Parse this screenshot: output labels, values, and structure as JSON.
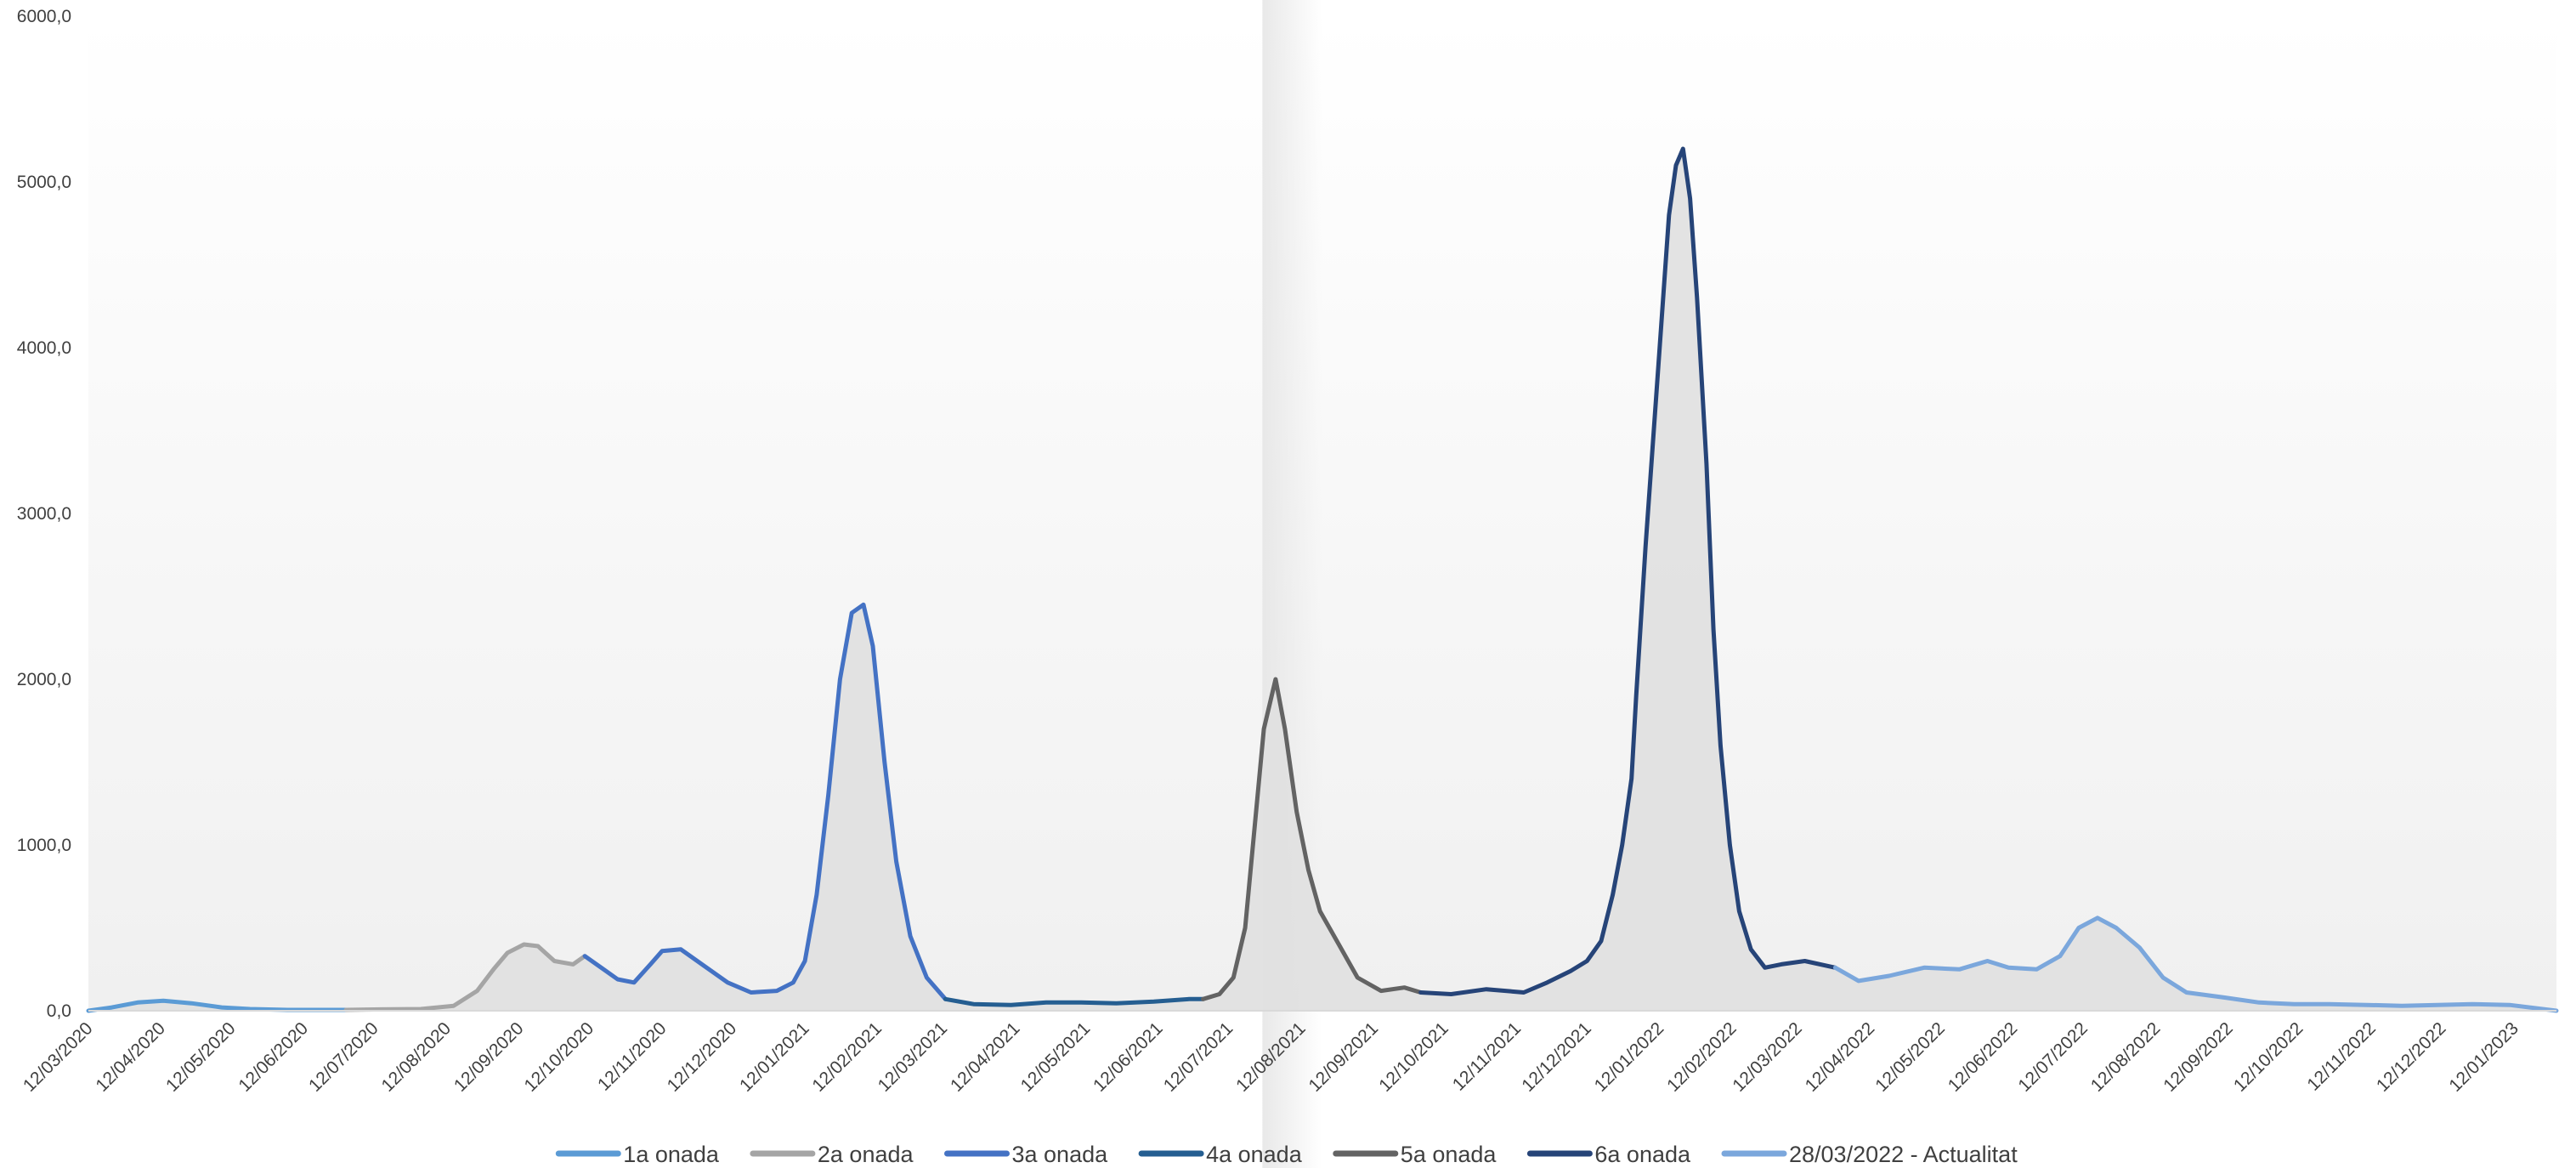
{
  "chart_data": {
    "type": "line",
    "title": "",
    "xlabel": "",
    "ylabel": "",
    "ylim": [
      0,
      6000
    ],
    "y_ticks": [
      "0,0",
      "1000,0",
      "2000,0",
      "3000,0",
      "4000,0",
      "5000,0",
      "6000,0"
    ],
    "x_range": [
      "2020-03-12",
      "2023-01-30"
    ],
    "x_ticks": [
      "12/03/2020",
      "12/04/2020",
      "12/05/2020",
      "12/06/2020",
      "12/07/2020",
      "12/08/2020",
      "12/09/2020",
      "12/10/2020",
      "12/11/2020",
      "12/12/2020",
      "12/01/2021",
      "12/02/2021",
      "12/03/2021",
      "12/04/2021",
      "12/05/2021",
      "12/06/2021",
      "12/07/2021",
      "12/08/2021",
      "12/09/2021",
      "12/10/2021",
      "12/11/2021",
      "12/12/2021",
      "12/01/2022",
      "12/02/2022",
      "12/03/2022",
      "12/04/2022",
      "12/05/2022",
      "12/06/2022",
      "12/07/2022",
      "12/08/2022",
      "12/09/2022",
      "12/10/2022",
      "12/11/2022",
      "12/12/2022",
      "12/01/2023"
    ],
    "grid": false,
    "legend_position": "bottom",
    "area_fill": "#e0e0e0",
    "highlight_band_color": "#e6e6e6",
    "series": [
      {
        "name": "1a onada",
        "color": "#5b9bd5",
        "points": [
          [
            "2020-03-12",
            0
          ],
          [
            "2020-03-22",
            20
          ],
          [
            "2020-04-02",
            50
          ],
          [
            "2020-04-13",
            60
          ],
          [
            "2020-04-25",
            45
          ],
          [
            "2020-05-08",
            20
          ],
          [
            "2020-05-20",
            10
          ],
          [
            "2020-06-05",
            5
          ],
          [
            "2020-06-30",
            5
          ]
        ]
      },
      {
        "name": "2a onada",
        "color": "#a5a5a5",
        "points": [
          [
            "2020-06-30",
            5
          ],
          [
            "2020-07-15",
            8
          ],
          [
            "2020-08-01",
            10
          ],
          [
            "2020-08-15",
            30
          ],
          [
            "2020-08-25",
            120
          ],
          [
            "2020-09-01",
            250
          ],
          [
            "2020-09-07",
            350
          ],
          [
            "2020-09-14",
            400
          ],
          [
            "2020-09-20",
            390
          ],
          [
            "2020-09-27",
            300
          ],
          [
            "2020-10-05",
            280
          ],
          [
            "2020-10-10",
            330
          ]
        ]
      },
      {
        "name": "3a onada",
        "color": "#4472c4",
        "points": [
          [
            "2020-10-10",
            330
          ],
          [
            "2020-10-17",
            260
          ],
          [
            "2020-10-24",
            190
          ],
          [
            "2020-10-31",
            170
          ],
          [
            "2020-11-07",
            280
          ],
          [
            "2020-11-12",
            360
          ],
          [
            "2020-11-20",
            370
          ],
          [
            "2020-11-30",
            270
          ],
          [
            "2020-12-10",
            170
          ],
          [
            "2020-12-20",
            110
          ],
          [
            "2020-12-31",
            120
          ],
          [
            "2021-01-07",
            170
          ],
          [
            "2021-01-12",
            300
          ],
          [
            "2021-01-17",
            700
          ],
          [
            "2021-01-22",
            1300
          ],
          [
            "2021-01-27",
            2000
          ],
          [
            "2021-02-01",
            2400
          ],
          [
            "2021-02-06",
            2450
          ],
          [
            "2021-02-10",
            2200
          ],
          [
            "2021-02-15",
            1500
          ],
          [
            "2021-02-20",
            900
          ],
          [
            "2021-02-26",
            450
          ],
          [
            "2021-03-05",
            200
          ],
          [
            "2021-03-13",
            70
          ]
        ]
      },
      {
        "name": "4a onada",
        "color": "#255e91",
        "points": [
          [
            "2021-03-13",
            70
          ],
          [
            "2021-03-25",
            40
          ],
          [
            "2021-04-10",
            35
          ],
          [
            "2021-04-25",
            50
          ],
          [
            "2021-05-10",
            50
          ],
          [
            "2021-05-25",
            45
          ],
          [
            "2021-06-10",
            55
          ],
          [
            "2021-06-25",
            70
          ],
          [
            "2021-07-01",
            70
          ]
        ]
      },
      {
        "name": "5a onada",
        "color": "#636363",
        "points": [
          [
            "2021-07-01",
            70
          ],
          [
            "2021-07-08",
            100
          ],
          [
            "2021-07-14",
            200
          ],
          [
            "2021-07-19",
            500
          ],
          [
            "2021-07-23",
            1100
          ],
          [
            "2021-07-27",
            1700
          ],
          [
            "2021-08-01",
            2000
          ],
          [
            "2021-08-05",
            1700
          ],
          [
            "2021-08-10",
            1200
          ],
          [
            "2021-08-15",
            850
          ],
          [
            "2021-08-20",
            600
          ],
          [
            "2021-08-28",
            400
          ],
          [
            "2021-09-05",
            200
          ],
          [
            "2021-09-15",
            120
          ],
          [
            "2021-09-25",
            140
          ],
          [
            "2021-10-02",
            110
          ]
        ]
      },
      {
        "name": "6a onada",
        "color": "#264478",
        "points": [
          [
            "2021-10-02",
            110
          ],
          [
            "2021-10-15",
            100
          ],
          [
            "2021-10-30",
            130
          ],
          [
            "2021-11-15",
            110
          ],
          [
            "2021-11-25",
            170
          ],
          [
            "2021-12-05",
            240
          ],
          [
            "2021-12-12",
            300
          ],
          [
            "2021-12-18",
            420
          ],
          [
            "2021-12-23",
            700
          ],
          [
            "2021-12-27",
            1000
          ],
          [
            "2021-12-31",
            1400
          ],
          [
            "2022-01-02",
            1900
          ],
          [
            "2022-01-06",
            2800
          ],
          [
            "2022-01-09",
            3400
          ],
          [
            "2022-01-12",
            4000
          ],
          [
            "2022-01-16",
            4800
          ],
          [
            "2022-01-19",
            5100
          ],
          [
            "2022-01-22",
            5200
          ],
          [
            "2022-01-25",
            4900
          ],
          [
            "2022-01-28",
            4300
          ],
          [
            "2022-02-01",
            3300
          ],
          [
            "2022-02-04",
            2300
          ],
          [
            "2022-02-07",
            1600
          ],
          [
            "2022-02-11",
            1000
          ],
          [
            "2022-02-15",
            600
          ],
          [
            "2022-02-20",
            370
          ],
          [
            "2022-02-26",
            260
          ],
          [
            "2022-03-05",
            280
          ],
          [
            "2022-03-15",
            300
          ],
          [
            "2022-03-28",
            260
          ]
        ]
      },
      {
        "name": "28/03/2022 - Actualitat",
        "color": "#7ba7dc",
        "points": [
          [
            "2022-03-28",
            260
          ],
          [
            "2022-04-07",
            180
          ],
          [
            "2022-04-20",
            210
          ],
          [
            "2022-05-05",
            260
          ],
          [
            "2022-05-20",
            250
          ],
          [
            "2022-06-01",
            300
          ],
          [
            "2022-06-10",
            260
          ],
          [
            "2022-06-22",
            250
          ],
          [
            "2022-07-02",
            330
          ],
          [
            "2022-07-10",
            500
          ],
          [
            "2022-07-18",
            560
          ],
          [
            "2022-07-26",
            500
          ],
          [
            "2022-08-05",
            380
          ],
          [
            "2022-08-15",
            200
          ],
          [
            "2022-08-25",
            110
          ],
          [
            "2022-09-10",
            80
          ],
          [
            "2022-09-25",
            50
          ],
          [
            "2022-10-10",
            40
          ],
          [
            "2022-10-25",
            40
          ],
          [
            "2022-11-10",
            35
          ],
          [
            "2022-11-25",
            30
          ],
          [
            "2022-12-10",
            35
          ],
          [
            "2022-12-25",
            40
          ],
          [
            "2023-01-10",
            35
          ],
          [
            "2023-01-30",
            0
          ]
        ]
      }
    ]
  }
}
